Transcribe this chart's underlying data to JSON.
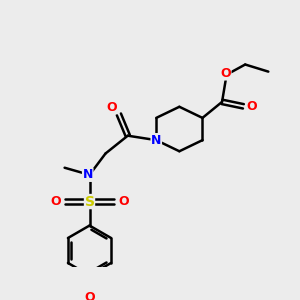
{
  "background_color": "#ececec",
  "bond_color": "#000000",
  "atom_colors": {
    "O": "#ff0000",
    "N": "#0000ff",
    "S": "#cccc00",
    "C": "#000000"
  },
  "figsize": [
    3.0,
    3.0
  ],
  "dpi": 100
}
